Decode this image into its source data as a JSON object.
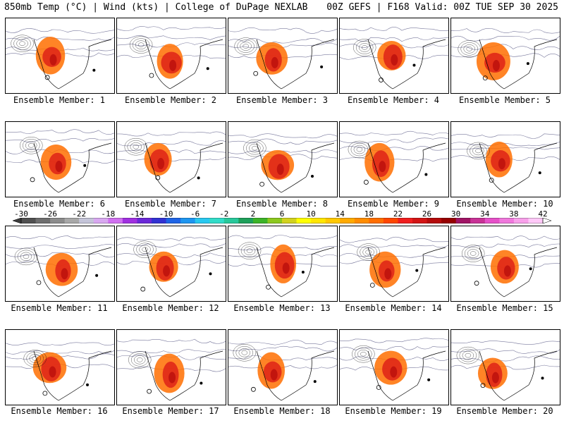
{
  "header": {
    "left": "850mb Temp (°C) | Wind (kts) | College of DuPage NEXLAB",
    "right": "00Z GEFS | F168 Valid: 00Z TUE SEP 30 2025"
  },
  "members": [
    "Ensemble Member: 1",
    "Ensemble Member: 2",
    "Ensemble Member: 3",
    "Ensemble Member: 4",
    "Ensemble Member: 5",
    "Ensemble Member: 6",
    "Ensemble Member: 7",
    "Ensemble Member: 8",
    "Ensemble Member: 9",
    "Ensemble Member: 10",
    "Ensemble Member: 11",
    "Ensemble Member: 12",
    "Ensemble Member: 13",
    "Ensemble Member: 14",
    "Ensemble Member: 15",
    "Ensemble Member: 16",
    "Ensemble Member: 17",
    "Ensemble Member: 18",
    "Ensemble Member: 19",
    "Ensemble Member: 20"
  ],
  "colorbar": {
    "ticks": [
      "-30",
      "-26",
      "-22",
      "-18",
      "-14",
      "-10",
      "-6",
      "-2",
      "2",
      "6",
      "10",
      "14",
      "18",
      "22",
      "26",
      "30",
      "34",
      "38",
      "42"
    ],
    "colors": [
      "#505050",
      "#6e6e6e",
      "#8c8c8c",
      "#a8a8a8",
      "#c4c4d8",
      "#d8a8f0",
      "#d070f0",
      "#a030e0",
      "#6a28d8",
      "#3232d2",
      "#1e64e6",
      "#1e96f0",
      "#28c8f0",
      "#32dcc8",
      "#28c89b",
      "#1ea05a",
      "#3cb428",
      "#8cc81e",
      "#d2d21e",
      "#ffff00",
      "#ffe600",
      "#ffc800",
      "#ffaa00",
      "#ff8c00",
      "#ff6e00",
      "#ff4600",
      "#f01e1e",
      "#d21414",
      "#b40a0a",
      "#960000",
      "#a01464",
      "#c83296",
      "#e650c8",
      "#f078dc",
      "#f8a0ea",
      "#ffc8f8"
    ]
  }
}
